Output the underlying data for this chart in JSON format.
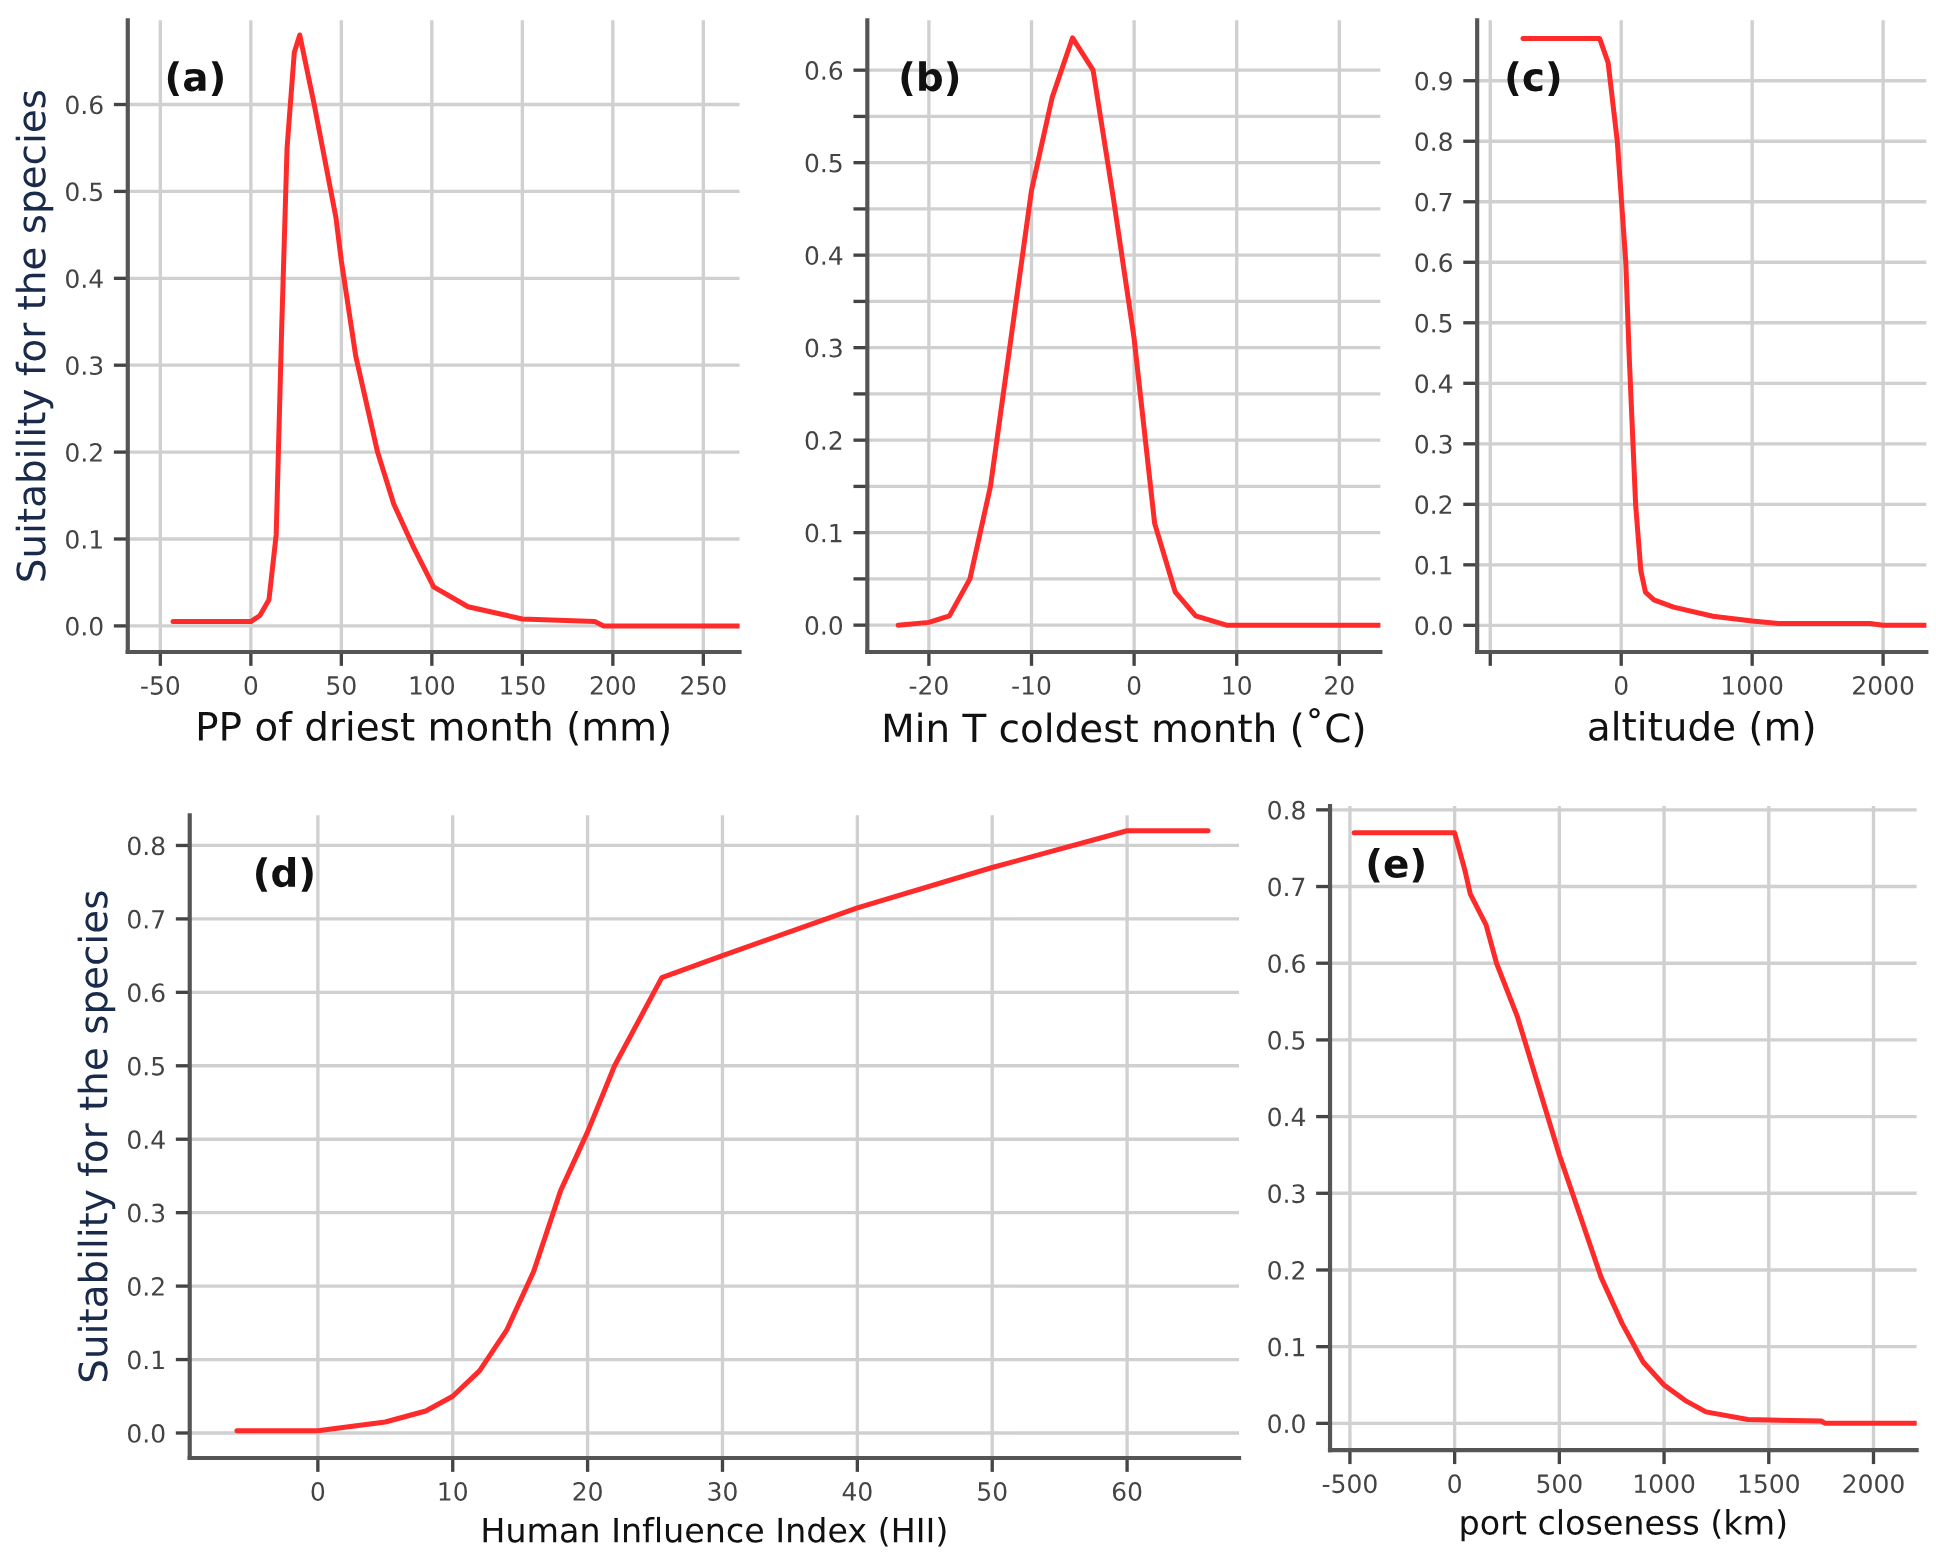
{
  "chart_data": [
    {
      "type": "line",
      "xlabel": "PP of driest month (mm)",
      "ylabel": "Suitability for the species",
      "annotations": [
        "(a)"
      ],
      "grid": true,
      "series": [
        {
          "color": "#ff2a2a",
          "x": [
            -43,
            0,
            5,
            10,
            14,
            17,
            20,
            24,
            27,
            35,
            47,
            50,
            58,
            70,
            79,
            90,
            101,
            120,
            150,
            190,
            195,
            270
          ],
          "values": [
            0.005,
            0.005,
            0.012,
            0.03,
            0.105,
            0.34,
            0.55,
            0.66,
            0.68,
            0.6,
            0.47,
            0.42,
            0.31,
            0.2,
            0.14,
            0.09,
            0.045,
            0.022,
            0.008,
            0.005,
            0.0,
            0.0
          ]
        }
      ],
      "xlim": [
        -68,
        270
      ],
      "ylim": [
        -0.03,
        0.697
      ],
      "xticks": [
        -50,
        0,
        50,
        100,
        150,
        200,
        250
      ],
      "yticks": [
        {
          "value": 0,
          "label": "0.0"
        },
        0.1,
        0.2,
        0.3,
        0.4,
        0.5,
        0.6
      ]
    },
    {
      "type": "line",
      "xlabel": "Min T coldest month (˚C)",
      "annotations": [
        "(b)"
      ],
      "grid": true,
      "series": [
        {
          "color": "#ff2a2a",
          "x": [
            -23,
            -20,
            -18,
            -16,
            -14,
            -12,
            -10,
            -8,
            -6,
            -4,
            -2,
            0,
            2,
            4,
            6,
            9,
            24
          ],
          "values": [
            0.0,
            0.003,
            0.01,
            0.05,
            0.15,
            0.31,
            0.47,
            0.57,
            0.635,
            0.6,
            0.46,
            0.31,
            0.11,
            0.036,
            0.01,
            0.0,
            0.0
          ]
        }
      ],
      "xlim": [
        -26,
        24
      ],
      "ylim": [
        -0.029,
        0.654
      ],
      "xticks": [
        -20,
        -10,
        0,
        10,
        20
      ],
      "yticks": [
        {
          "value": 0,
          "label": "0.0"
        },
        {
          "value": 0.05,
          "label": null
        },
        0.1,
        {
          "value": 0.15,
          "label": null
        },
        0.2,
        {
          "value": 0.25,
          "label": null
        },
        0.3,
        {
          "value": 0.35,
          "label": null
        },
        0.4,
        {
          "value": 0.45,
          "label": null
        },
        0.5,
        {
          "value": 0.55,
          "label": null
        },
        0.6
      ]
    },
    {
      "type": "line",
      "xlabel": "altitude (m)",
      "annotations": [
        "(c)"
      ],
      "grid": true,
      "series": [
        {
          "color": "#ff2a2a",
          "x": [
            -750,
            -165,
            -100,
            -30,
            35,
            60,
            110,
            150,
            185,
            250,
            400,
            700,
            1000,
            1200,
            1900,
            2000,
            2330
          ],
          "values": [
            0.97,
            0.97,
            0.93,
            0.8,
            0.6,
            0.45,
            0.2,
            0.09,
            0.055,
            0.042,
            0.03,
            0.015,
            0.007,
            0.003,
            0.003,
            0.0,
            0.0
          ]
        }
      ],
      "xlim": [
        -1100,
        2330
      ],
      "ylim": [
        -0.044,
        1.0
      ],
      "xticks": [
        {
          "value": -1000,
          "label": null
        },
        0,
        1000,
        2000
      ],
      "yticks": [
        {
          "value": 0,
          "label": "0.0"
        },
        0.1,
        0.2,
        0.3,
        0.4,
        0.5,
        0.6,
        0.7,
        0.8,
        0.9
      ]
    },
    {
      "type": "line",
      "xlabel": "Human Influence Index (HII)",
      "ylabel": "Suitability for the species",
      "annotations": [
        "(d)"
      ],
      "grid": true,
      "series": [
        {
          "color": "#ff2a2a",
          "x": [
            -6,
            0,
            5,
            8,
            10,
            12,
            14,
            16,
            18,
            20,
            22,
            25.5,
            30,
            40,
            50,
            60,
            66
          ],
          "values": [
            0.003,
            0.003,
            0.015,
            0.03,
            0.05,
            0.085,
            0.14,
            0.22,
            0.33,
            0.41,
            0.5,
            0.62,
            0.65,
            0.715,
            0.77,
            0.82,
            0.82
          ]
        }
      ],
      "xlim": [
        -9.5,
        68.3
      ],
      "ylim": [
        -0.034,
        0.841
      ],
      "xticks": [
        0,
        10,
        20,
        30,
        40,
        50,
        60
      ],
      "yticks": [
        {
          "value": 0,
          "label": "0.0"
        },
        0.1,
        0.2,
        0.3,
        0.4,
        0.5,
        0.6,
        0.7,
        0.8
      ]
    },
    {
      "type": "line",
      "xlabel": "port closeness (km)",
      "annotations": [
        "(e)"
      ],
      "grid": true,
      "series": [
        {
          "color": "#ff2a2a",
          "x": [
            -480,
            0,
            50,
            75,
            150,
            200,
            300,
            400,
            500,
            600,
            700,
            800,
            900,
            1000,
            1100,
            1200,
            1400,
            1750,
            1770,
            2206
          ],
          "values": [
            0.77,
            0.77,
            0.72,
            0.69,
            0.65,
            0.6,
            0.53,
            0.44,
            0.35,
            0.27,
            0.19,
            0.13,
            0.08,
            0.05,
            0.03,
            0.015,
            0.005,
            0.003,
            0.0,
            0.0
          ]
        }
      ],
      "xlim": [
        -595,
        2206
      ],
      "ylim": [
        -0.035,
        0.805
      ],
      "xticks": [
        -500,
        0,
        500,
        1000,
        1500,
        2000
      ],
      "yticks": [
        {
          "value": 0,
          "label": "0.0"
        },
        0.1,
        0.2,
        0.3,
        0.4,
        0.5,
        0.6,
        0.7,
        0.8
      ]
    }
  ]
}
